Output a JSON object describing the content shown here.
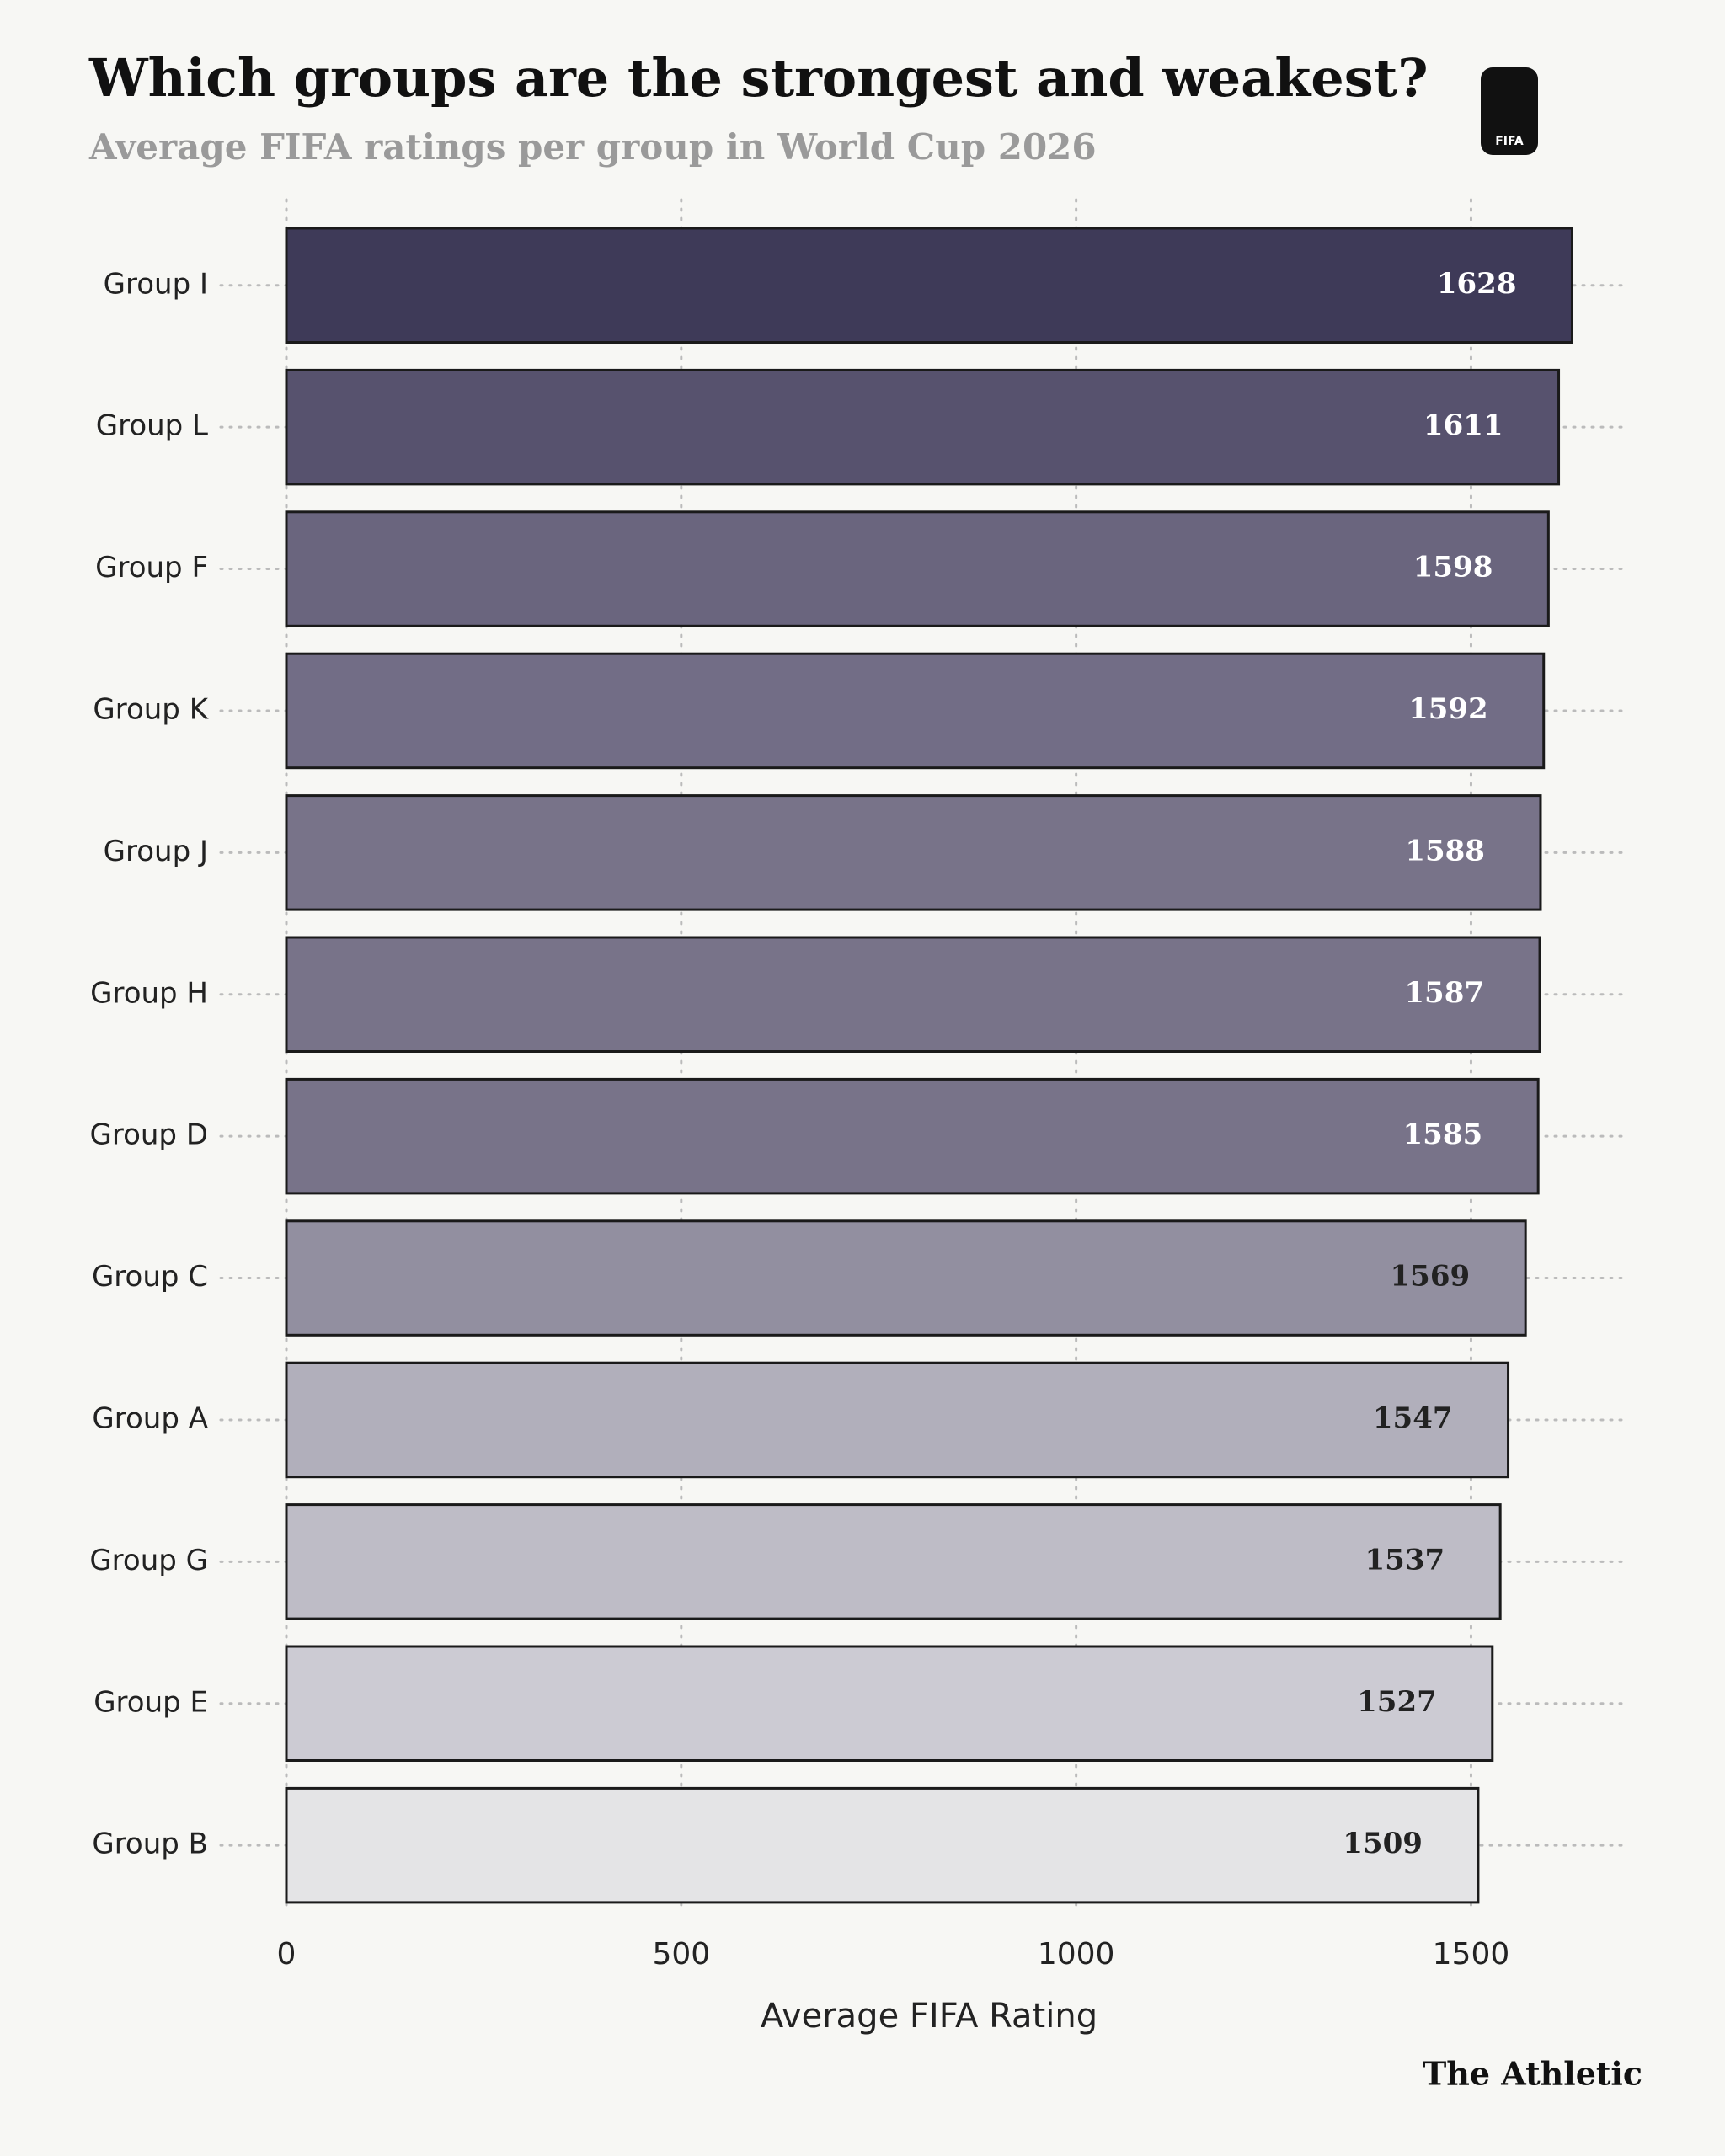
{
  "chart_data": {
    "type": "hbar",
    "title": "Which groups are the strongest and weakest?",
    "subtitle": "Average FIFA ratings per group in World Cup 2026",
    "x_label": "Average FIFA Rating",
    "source": "The Athletic",
    "logo_text": "FIFA",
    "categories": [
      "Group I",
      "Group L",
      "Group F",
      "Group K",
      "Group J",
      "Group H",
      "Group D",
      "Group C",
      "Group A",
      "Group G",
      "Group E",
      "Group B"
    ],
    "values": [
      1628,
      1611,
      1598,
      1592,
      1588,
      1587,
      1585,
      1569,
      1547,
      1537,
      1527,
      1509
    ],
    "colors": [
      "#3e3a58",
      "#57526e",
      "#6a657e",
      "#726d86",
      "#787389",
      "#787389",
      "#787389",
      "#928fa0",
      "#b1afbb",
      "#bebcc6",
      "#cccbd3",
      "#e4e4e6"
    ],
    "xlim": [
      0,
      1700
    ],
    "xticks": [
      0,
      500,
      1000,
      1500
    ],
    "grid": true
  }
}
